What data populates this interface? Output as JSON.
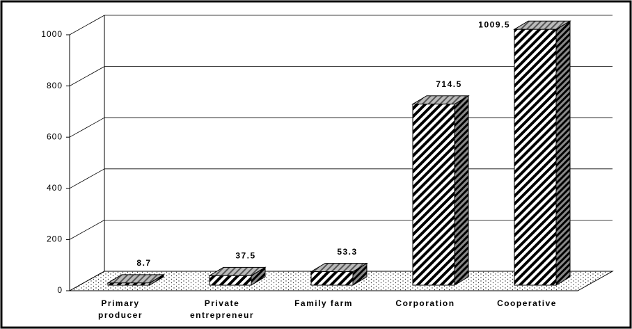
{
  "chart_data": {
    "type": "bar3d",
    "categories": [
      "Primary producer",
      "Private entrepreneur",
      "Family farm",
      "Corporation",
      "Cooperative"
    ],
    "values": [
      8.7,
      37.5,
      53.3,
      714.5,
      1009.5
    ],
    "ylim": [
      0,
      1000
    ],
    "yticks": [
      0,
      200,
      400,
      600,
      800,
      1000
    ],
    "grid": true,
    "color": "#000000"
  }
}
